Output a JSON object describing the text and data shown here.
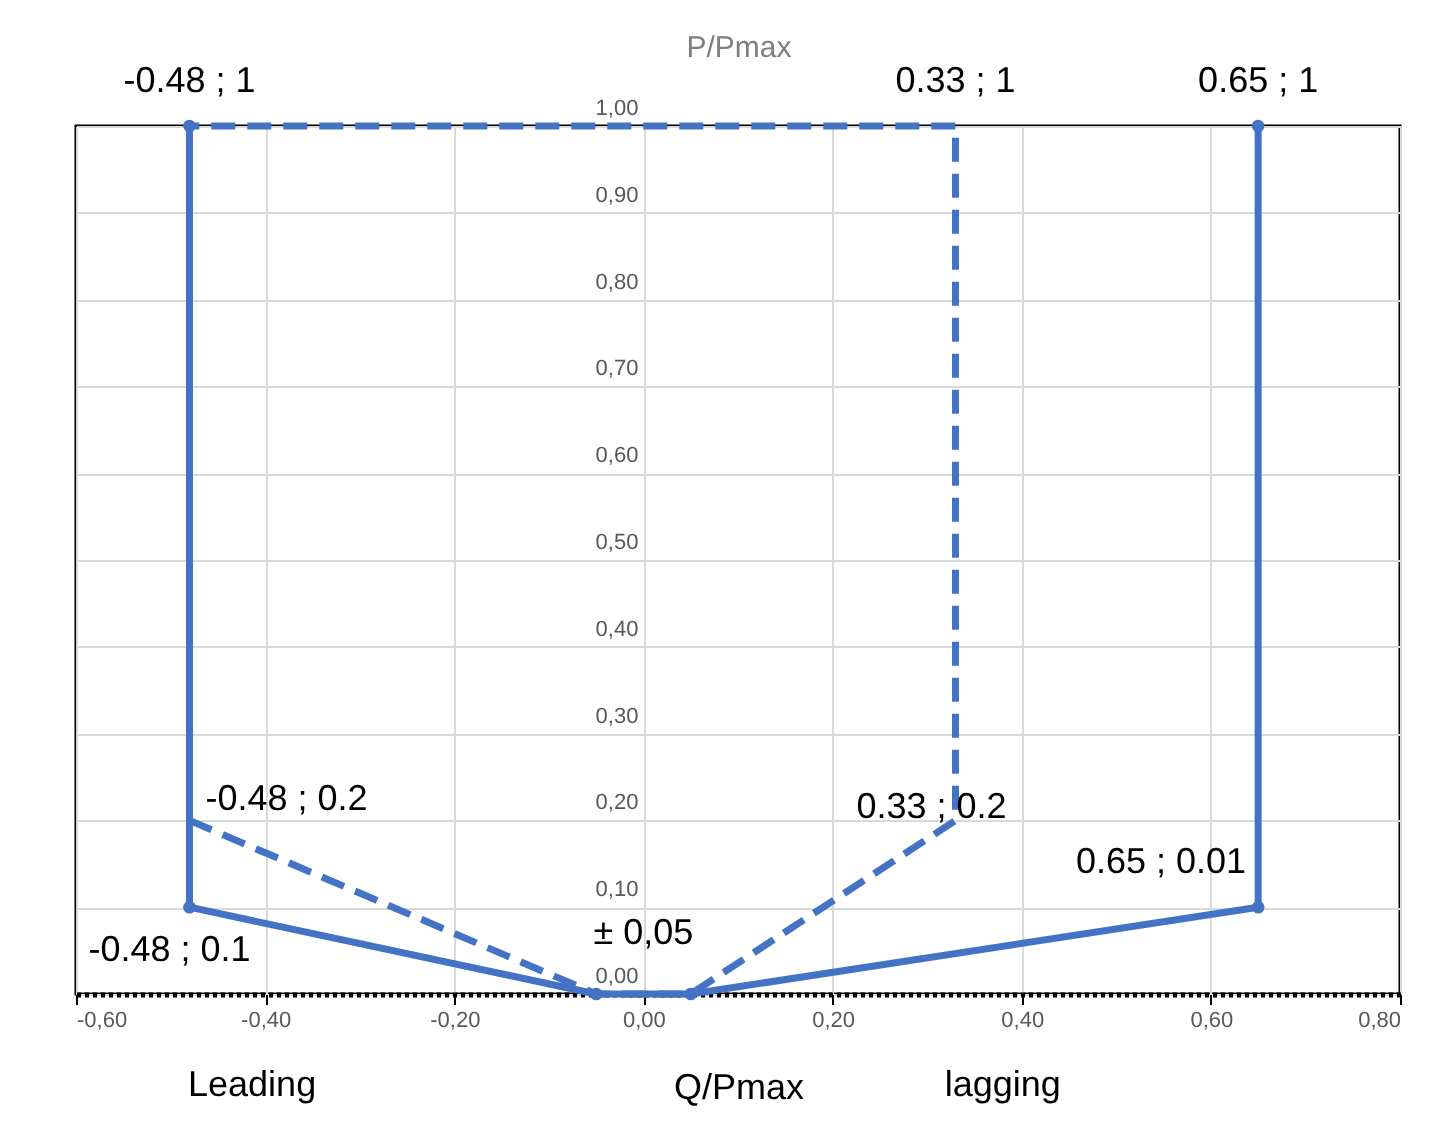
{
  "chart_data": {
    "type": "line",
    "xlabel": "Q/Pmax",
    "ylabel": "P/Pmax",
    "xlim": [
      -0.6,
      0.8
    ],
    "ylim": [
      0,
      1
    ],
    "xticks": [
      {
        "value": -0.6,
        "label": "-0,60"
      },
      {
        "value": -0.4,
        "label": "-0,40"
      },
      {
        "value": -0.2,
        "label": "-0,20"
      },
      {
        "value": 0,
        "label": "0,00"
      },
      {
        "value": 0.2,
        "label": "0,20"
      },
      {
        "value": 0.4,
        "label": "0,40"
      },
      {
        "value": 0.6,
        "label": "0,60"
      },
      {
        "value": 0.8,
        "label": "0,80"
      }
    ],
    "yticks": [
      {
        "value": 0,
        "label": "0,00"
      },
      {
        "value": 0.1,
        "label": "0,10"
      },
      {
        "value": 0.2,
        "label": "0,20"
      },
      {
        "value": 0.3,
        "label": "0,30"
      },
      {
        "value": 0.4,
        "label": "0,40"
      },
      {
        "value": 0.5,
        "label": "0,50"
      },
      {
        "value": 0.6,
        "label": "0,60"
      },
      {
        "value": 0.7,
        "label": "0,70"
      },
      {
        "value": 0.8,
        "label": "0,80"
      },
      {
        "value": 0.9,
        "label": "0,90"
      },
      {
        "value": 1,
        "label": "1,00"
      }
    ],
    "series": [
      {
        "color": "#4472c4",
        "line_style": "solid",
        "marker": "circle",
        "x": [
          -0.48,
          -0.48,
          -0.05,
          0.05,
          0.65,
          0.65
        ],
        "values": [
          1,
          0.1,
          0,
          0,
          0.1,
          1
        ]
      },
      {
        "color": "#4472c4",
        "line_style": "dashed",
        "marker": "none",
        "x": [
          -0.48,
          -0.05,
          0.05,
          0.33,
          0.33,
          -0.48
        ],
        "values": [
          0.2,
          0,
          0,
          0.2,
          1,
          1
        ]
      }
    ],
    "grid": true,
    "annotations": [
      {
        "text": "-0.48 ; 1",
        "x": -0.48,
        "y": 1
      },
      {
        "text": "0.33 ; 1",
        "x": 0.33,
        "y": 1
      },
      {
        "text": "0.65 ; 1",
        "x": 0.65,
        "y": 1
      },
      {
        "text": "-0.48 ; 0.2",
        "x": -0.48,
        "y": 0.2
      },
      {
        "text": "-0.48 ; 0.1",
        "x": -0.48,
        "y": 0.1
      },
      {
        "text": "0.33 ; 0.2",
        "x": 0.33,
        "y": 0.2
      },
      {
        "text": "0.65 ; 0.01",
        "x": 0.65,
        "y": 0.1
      },
      {
        "text": "± 0,05",
        "x": 0,
        "y": 0
      },
      "Leading",
      "lagging"
    ]
  }
}
